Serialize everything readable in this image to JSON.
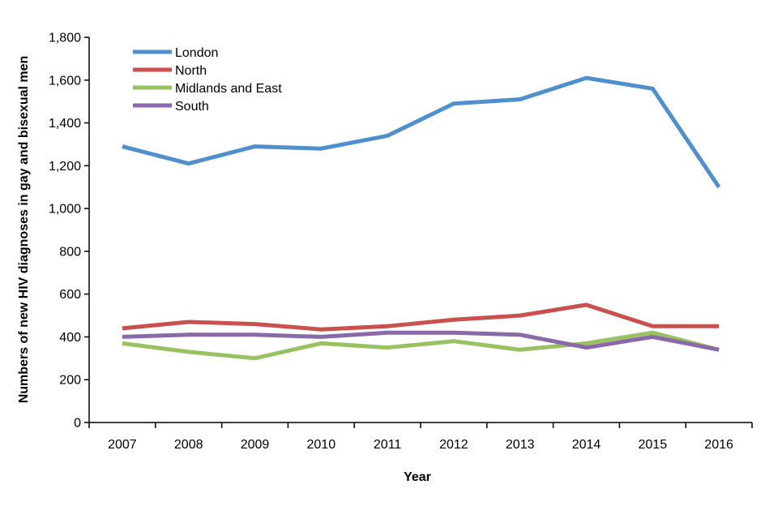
{
  "chart_data": {
    "type": "line",
    "title": "",
    "xlabel": "Year",
    "ylabel": "Numbers of new HIV diagnoses in gay and bisexual men",
    "x": [
      "2007",
      "2008",
      "2009",
      "2010",
      "2011",
      "2012",
      "2013",
      "2014",
      "2015",
      "2016"
    ],
    "ylim": [
      0,
      1800
    ],
    "yticks": [
      0,
      200,
      400,
      600,
      800,
      1000,
      1200,
      1400,
      1600,
      1800
    ],
    "ytick_labels": [
      "0",
      "200",
      "400",
      "600",
      "800",
      "1,000",
      "1,200",
      "1,400",
      "1,600",
      "1,800"
    ],
    "grid": false,
    "legend_position": "top-left",
    "series": [
      {
        "name": "London",
        "color": "#4f8fcd",
        "values": [
          1290,
          1210,
          1290,
          1280,
          1340,
          1490,
          1510,
          1610,
          1560,
          1100
        ]
      },
      {
        "name": "North",
        "color": "#c9504d",
        "values": [
          440,
          470,
          460,
          435,
          450,
          480,
          500,
          550,
          450,
          450
        ]
      },
      {
        "name": "Midlands and East",
        "color": "#98c162",
        "values": [
          370,
          330,
          300,
          370,
          350,
          380,
          340,
          370,
          420,
          340
        ]
      },
      {
        "name": "South",
        "color": "#8a69a9",
        "values": [
          400,
          410,
          410,
          400,
          420,
          420,
          410,
          350,
          400,
          340
        ]
      }
    ]
  }
}
